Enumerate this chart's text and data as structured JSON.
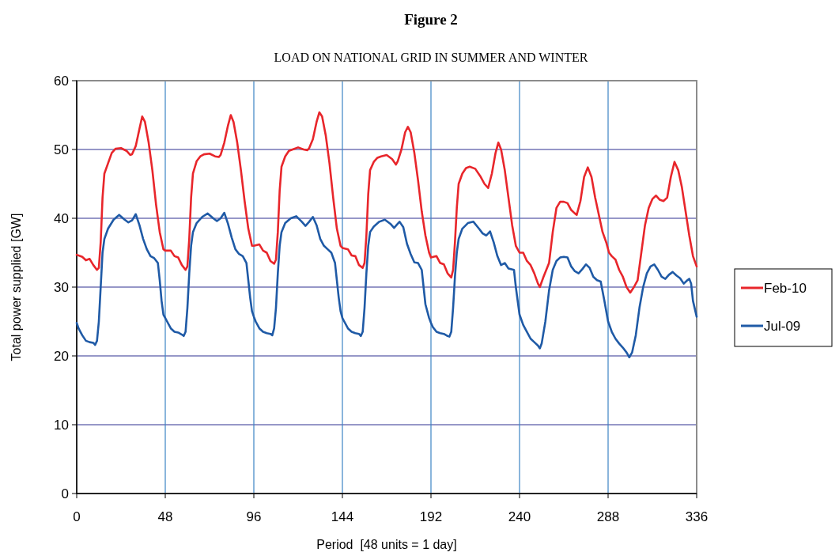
{
  "chart_data": {
    "type": "line",
    "title": "Figure 2",
    "subtitle": "LOAD ON NATIONAL GRID IN SUMMER AND WINTER",
    "xlabel": "Period  [48 units = 1 day]",
    "ylabel": "Total power supplied [GW]",
    "xlim": [
      0,
      336
    ],
    "xticks": [
      0,
      48,
      96,
      144,
      192,
      240,
      288,
      336
    ],
    "ylim": [
      0,
      60
    ],
    "yticks": [
      0,
      10,
      20,
      30,
      40,
      50,
      60
    ],
    "grid": true,
    "legend": "right",
    "line_style": "solid",
    "marker": "none",
    "series": [
      {
        "name": "Feb-10",
        "color": "#e8262b",
        "x": [
          0,
          3,
          5,
          7,
          9,
          11,
          12,
          13,
          14,
          15,
          17,
          19,
          21,
          24,
          27,
          29,
          30,
          32,
          34,
          35.5,
          37,
          39,
          41,
          43,
          45,
          47,
          48,
          51,
          53,
          55,
          57,
          59,
          60,
          61,
          62,
          63,
          65,
          67,
          69,
          72,
          75,
          77,
          78,
          80,
          82,
          83.5,
          85,
          87,
          89,
          91,
          93,
          95,
          96,
          99,
          101,
          103,
          105,
          107,
          108,
          109,
          110,
          111,
          113,
          115,
          117,
          120,
          123,
          125,
          126,
          128,
          130,
          131.5,
          133,
          135,
          137,
          139,
          141,
          143,
          144,
          147,
          149,
          151,
          153,
          155,
          156,
          157,
          158,
          159,
          161,
          163,
          165,
          168,
          171,
          173,
          174,
          176,
          178,
          179.5,
          181,
          183,
          185,
          187,
          189,
          191,
          192,
          195,
          197,
          199,
          201,
          203,
          204,
          205,
          206,
          207,
          209,
          211,
          213,
          216,
          219,
          221,
          223,
          225,
          227,
          228.5,
          230,
          232,
          234,
          236,
          238,
          240,
          242,
          244,
          246,
          248,
          250,
          251,
          253,
          256,
          258,
          260,
          262,
          264,
          266,
          268,
          270,
          271,
          273,
          275,
          277,
          279,
          281,
          283,
          285,
          287,
          288.5,
          290,
          292,
          294,
          296,
          298,
          300,
          302,
          304,
          306,
          308,
          310,
          312,
          314,
          316,
          318,
          320,
          322,
          324,
          326,
          328,
          330,
          332,
          334,
          336
        ],
        "values": [
          34.7,
          34.4,
          33.9,
          34.1,
          33.2,
          32.5,
          32.8,
          36.5,
          43,
          46.5,
          48,
          49.5,
          50.1,
          50.2,
          49.8,
          49.2,
          49.3,
          50.5,
          53,
          54.8,
          54,
          51,
          47,
          42,
          38,
          35.5,
          35.3,
          35.3,
          34.5,
          34.3,
          33.2,
          32.5,
          33,
          37,
          43,
          46.5,
          48.3,
          49,
          49.3,
          49.4,
          49,
          48.9,
          49.2,
          51,
          53.5,
          55,
          54,
          51,
          47,
          42.5,
          38.5,
          36,
          36,
          36.2,
          35.3,
          35,
          33.8,
          33.4,
          34,
          38,
          44,
          47.5,
          49,
          49.8,
          50,
          50.3,
          50,
          49.9,
          50.2,
          51.5,
          54,
          55.4,
          54.8,
          52,
          48,
          43,
          38.5,
          36,
          35.7,
          35.5,
          34.6,
          34.5,
          33.2,
          32.8,
          33.5,
          37.5,
          43.5,
          47,
          48.2,
          48.8,
          49,
          49.2,
          48.6,
          47.8,
          48.3,
          50,
          52.5,
          53.3,
          52.5,
          49.5,
          45.5,
          41,
          37.5,
          35,
          34.3,
          34.5,
          33.5,
          33.3,
          32,
          31.4,
          32.5,
          36.5,
          41.5,
          45,
          46.5,
          47.3,
          47.5,
          47.2,
          46,
          45,
          44.4,
          46.5,
          49.5,
          51,
          50,
          47,
          43,
          39,
          36,
          35,
          35,
          33.8,
          33.2,
          32,
          30.5,
          30,
          31.5,
          33.5,
          38,
          41.5,
          42.4,
          42.4,
          42.2,
          41.2,
          40.7,
          40.5,
          42.5,
          46,
          47.4,
          46,
          43,
          40.5,
          38,
          36.5,
          35,
          34.5,
          34,
          32.5,
          31.5,
          30,
          29.2,
          30,
          31,
          35,
          39,
          41.5,
          42.8,
          43.3,
          42.7,
          42.5,
          43,
          46,
          48.2,
          47,
          44.5,
          41,
          37.5,
          34.5,
          33
        ]
      },
      {
        "name": "Jul-09",
        "color": "#1f5aa6",
        "x": [
          0,
          1,
          3,
          5,
          7,
          9,
          10,
          11,
          12,
          13,
          14,
          15,
          17,
          20,
          23,
          26,
          28,
          30,
          32,
          34,
          36,
          38,
          40,
          42,
          44,
          45,
          46,
          47,
          48,
          49,
          51,
          53,
          55,
          57,
          58,
          59,
          60,
          61,
          62,
          63,
          65,
          68,
          71,
          74,
          76,
          78,
          80,
          82,
          84,
          86,
          88,
          90,
          92,
          93,
          94,
          95,
          96,
          97,
          99,
          101,
          103,
          105,
          106,
          107,
          108,
          109,
          110,
          111,
          113,
          116,
          119,
          122,
          124,
          126,
          128,
          130,
          132,
          134,
          136,
          138,
          140,
          141,
          142,
          143,
          144,
          145,
          147,
          149,
          151,
          153,
          154,
          155,
          156,
          157,
          158,
          159,
          161,
          164,
          167,
          170,
          172,
          174,
          175,
          177,
          179,
          181,
          183,
          185,
          187,
          188,
          189,
          191,
          192,
          193,
          195,
          197,
          199,
          201,
          202,
          203,
          204,
          205,
          206,
          207,
          209,
          212,
          215,
          218,
          220,
          222,
          224,
          226,
          228,
          230,
          232,
          234,
          237,
          238,
          240,
          242,
          244,
          246,
          248,
          250,
          251,
          252,
          254,
          256,
          258,
          260,
          262,
          264,
          266,
          268,
          270,
          272,
          274,
          276,
          278,
          280,
          282,
          284,
          286,
          288,
          290,
          292,
          294,
          296,
          298,
          299.5,
          301,
          303,
          305,
          307,
          309,
          311,
          313,
          315,
          317,
          319,
          321,
          323,
          325,
          327,
          329,
          331,
          332,
          333,
          334,
          336
        ],
        "values": [
          24.8,
          24,
          23,
          22.2,
          22,
          21.9,
          21.6,
          22.2,
          25,
          30,
          35,
          37,
          38.5,
          39.8,
          40.5,
          39.8,
          39.4,
          39.7,
          40.6,
          39,
          37,
          35.5,
          34.5,
          34.2,
          33.5,
          31,
          28,
          26,
          25.5,
          25,
          24,
          23.5,
          23.4,
          23.1,
          22.9,
          23.5,
          27,
          32,
          36,
          38,
          39.3,
          40.2,
          40.7,
          40,
          39.6,
          40,
          40.8,
          39.2,
          37.2,
          35.5,
          34.8,
          34.5,
          33.5,
          31,
          28.5,
          26.5,
          25.7,
          25,
          24,
          23.5,
          23.3,
          23.2,
          23,
          24,
          27,
          32,
          36,
          38,
          39.3,
          40,
          40.3,
          39.5,
          38.9,
          39.5,
          40.2,
          39,
          37,
          36,
          35.5,
          35,
          33.5,
          31,
          28.5,
          26.5,
          25.5,
          25,
          24,
          23.5,
          23.3,
          23.2,
          22.9,
          23.5,
          27,
          32,
          36,
          38,
          38.8,
          39.5,
          39.8,
          39.2,
          38.6,
          39.2,
          39.5,
          38.7,
          36.3,
          34.8,
          33.6,
          33.5,
          32.5,
          30,
          27.5,
          25.5,
          24.8,
          24.2,
          23.5,
          23.3,
          23.2,
          22.9,
          22.8,
          23.5,
          27,
          31.5,
          35,
          37,
          38.5,
          39.3,
          39.5,
          38.5,
          37.8,
          37.5,
          38.1,
          36.5,
          34.5,
          33.2,
          33.5,
          32.7,
          32.5,
          30,
          26,
          24.5,
          23.5,
          22.5,
          22,
          21.5,
          21.1,
          21.8,
          25,
          29.5,
          32.5,
          33.8,
          34.3,
          34.4,
          34.3,
          33,
          32.3,
          32,
          32.6,
          33.3,
          32.8,
          31.5,
          31,
          30.8,
          28,
          25,
          23.5,
          22.5,
          21.8,
          21.2,
          20.5,
          19.8,
          20.5,
          23,
          27,
          30,
          32,
          33,
          33.3,
          32.5,
          31.5,
          31.2,
          31.8,
          32.2,
          31.7,
          31.3,
          30.5,
          31,
          31.2,
          30.5,
          28,
          25.7
        ]
      }
    ]
  }
}
